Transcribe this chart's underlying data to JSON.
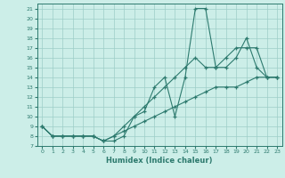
{
  "title": "",
  "xlabel": "Humidex (Indice chaleur)",
  "bg_color": "#cceee8",
  "line_color": "#2d7a6e",
  "grid_color": "#9ecdc7",
  "xlim": [
    -0.5,
    23.5
  ],
  "ylim": [
    7,
    21.5
  ],
  "yticks": [
    7,
    8,
    9,
    10,
    11,
    12,
    13,
    14,
    15,
    16,
    17,
    18,
    19,
    20,
    21
  ],
  "xticks": [
    0,
    1,
    2,
    3,
    4,
    5,
    6,
    7,
    8,
    9,
    10,
    11,
    12,
    13,
    14,
    15,
    16,
    17,
    18,
    19,
    20,
    21,
    22,
    23
  ],
  "series": [
    {
      "x": [
        0,
        1,
        2,
        3,
        4,
        5,
        6,
        7,
        8,
        9,
        10,
        11,
        12,
        13,
        14,
        15,
        16,
        17,
        18,
        19,
        20,
        21,
        22,
        23
      ],
      "y": [
        9,
        8,
        8,
        8,
        8,
        8,
        7.5,
        7.5,
        8,
        10,
        10.5,
        13,
        14,
        10,
        14,
        21,
        21,
        15,
        15,
        16,
        18,
        15,
        14,
        14
      ]
    },
    {
      "x": [
        0,
        1,
        2,
        3,
        4,
        5,
        6,
        7,
        8,
        9,
        10,
        11,
        12,
        13,
        14,
        15,
        16,
        17,
        18,
        19,
        20,
        21,
        22,
        23
      ],
      "y": [
        9,
        8,
        8,
        8,
        8,
        8,
        7.5,
        8,
        9,
        10,
        11,
        12,
        13,
        14,
        15,
        16,
        15,
        15,
        16,
        17,
        17,
        17,
        14,
        14
      ]
    },
    {
      "x": [
        0,
        1,
        2,
        3,
        4,
        5,
        6,
        7,
        8,
        9,
        10,
        11,
        12,
        13,
        14,
        15,
        16,
        17,
        18,
        19,
        20,
        21,
        22,
        23
      ],
      "y": [
        9,
        8,
        8,
        8,
        8,
        8,
        7.5,
        8,
        8.5,
        9,
        9.5,
        10,
        10.5,
        11,
        11.5,
        12,
        12.5,
        13,
        13,
        13,
        13.5,
        14,
        14,
        14
      ]
    }
  ]
}
